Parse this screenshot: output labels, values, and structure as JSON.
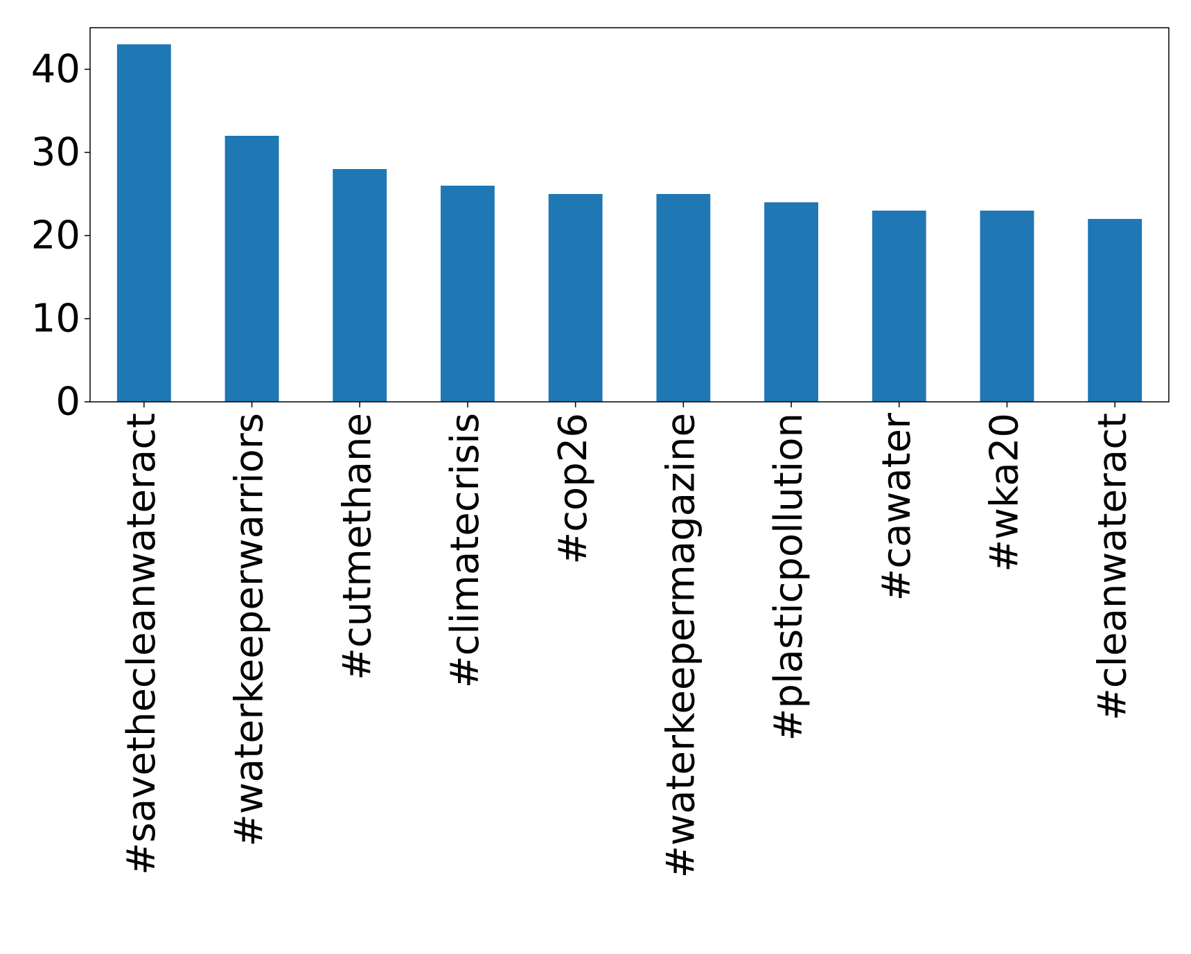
{
  "chart_data": {
    "type": "bar",
    "categories": [
      "#savethecleanwateract",
      "#waterkeeperwarriors",
      "#cutmethane",
      "#climatecrisis",
      "#cop26",
      "#waterkeepermagazine",
      "#plasticpollution",
      "#cawater",
      "#wka20",
      "#cleanwateract"
    ],
    "values": [
      43,
      32,
      28,
      26,
      25,
      25,
      24,
      23,
      23,
      22
    ],
    "title": "",
    "xlabel": "",
    "ylabel": "",
    "ylim": [
      0,
      45
    ],
    "yticks": [
      0,
      10,
      20,
      30,
      40
    ],
    "grid": false,
    "bar_color": "#1f77b4"
  }
}
